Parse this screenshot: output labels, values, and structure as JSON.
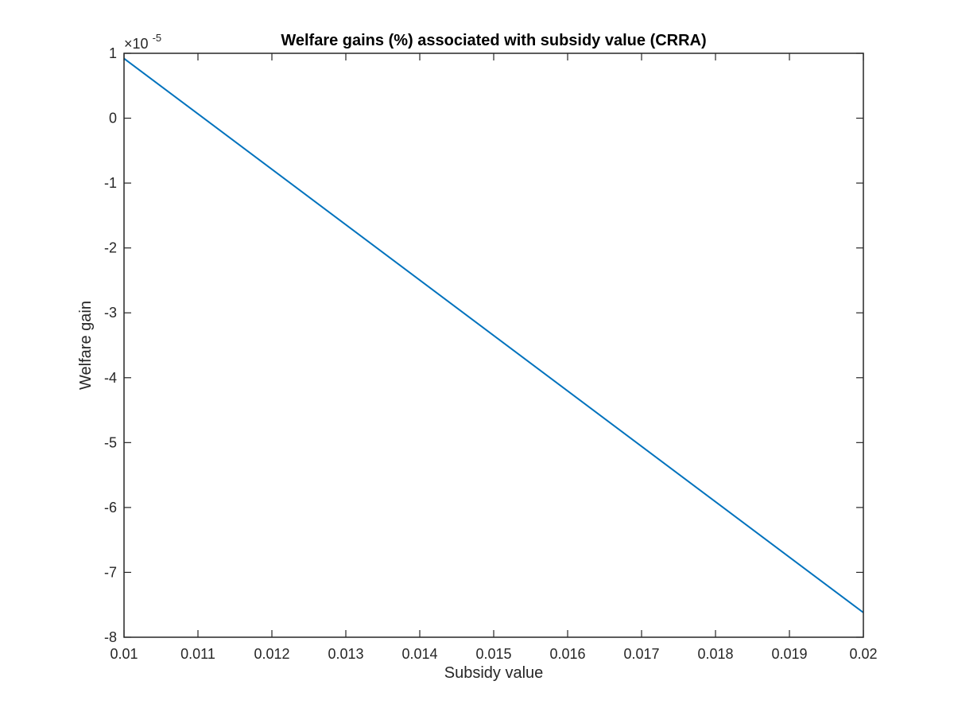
{
  "chart_data": {
    "type": "line",
    "title": "Welfare gains (%) associated with subsidy value (CRRA)",
    "xlabel": "Subsidy value",
    "ylabel": "Welfare gain",
    "y_multiplier": {
      "base": "×10",
      "exponent": "-5"
    },
    "xlim": [
      0.01,
      0.02
    ],
    "ylim": [
      -8,
      1
    ],
    "x_ticks": [
      0.01,
      0.011,
      0.012,
      0.013,
      0.014,
      0.015,
      0.016,
      0.017,
      0.018,
      0.019,
      0.02
    ],
    "x_tick_labels": [
      "0.01",
      "0.011",
      "0.012",
      "0.013",
      "0.014",
      "0.015",
      "0.016",
      "0.017",
      "0.018",
      "0.019",
      "0.02"
    ],
    "y_ticks": [
      -8,
      -7,
      -6,
      -5,
      -4,
      -3,
      -2,
      -1,
      0,
      1
    ],
    "y_tick_labels": [
      "-8",
      "-7",
      "-6",
      "-5",
      "-4",
      "-3",
      "-2",
      "-1",
      "0",
      "1"
    ],
    "grid": false,
    "box": true,
    "series": [
      {
        "color": "#0072BD",
        "x": [
          0.01,
          0.02
        ],
        "y": [
          0.92,
          -7.62
        ]
      }
    ]
  }
}
